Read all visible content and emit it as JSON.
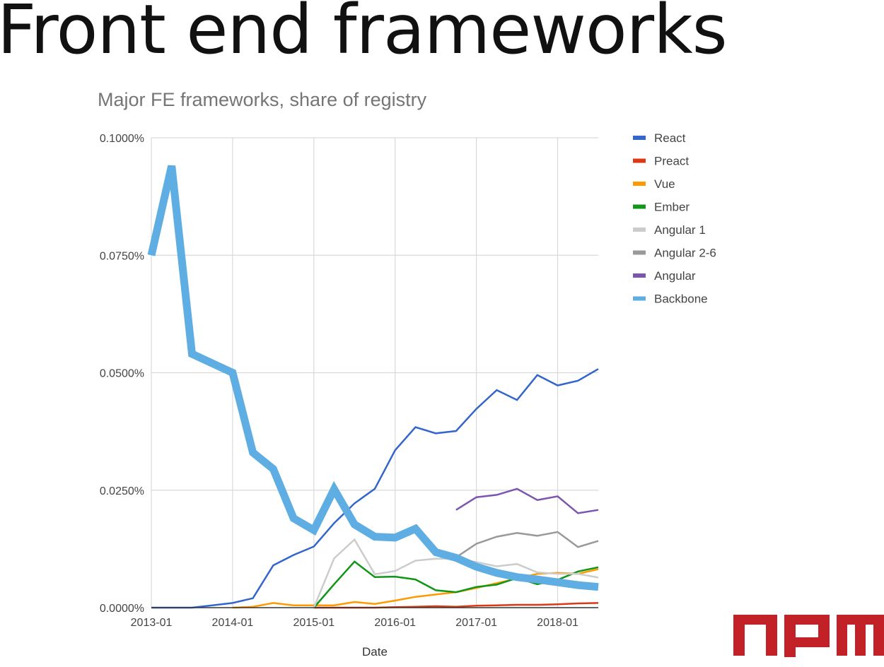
{
  "slide": {
    "title": "Front end frameworks"
  },
  "chart_data": {
    "type": "line",
    "title": "Major FE frameworks, share of registry",
    "xlabel": "Date",
    "ylabel": "",
    "x": [
      "2013-01",
      "2013-04",
      "2013-07",
      "2013-10",
      "2014-01",
      "2014-04",
      "2014-07",
      "2014-10",
      "2015-01",
      "2015-04",
      "2015-07",
      "2015-10",
      "2016-01",
      "2016-04",
      "2016-07",
      "2016-10",
      "2017-01",
      "2017-04",
      "2017-07",
      "2017-10",
      "2018-01",
      "2018-04",
      "2018-07"
    ],
    "x_ticks": [
      "2013-01",
      "2014-01",
      "2015-01",
      "2016-01",
      "2017-01",
      "2018-01"
    ],
    "y_ticks": [
      "0.0000%",
      "0.0250%",
      "0.0500%",
      "0.0750%",
      "0.1000%"
    ],
    "ylim": [
      0,
      0.1
    ],
    "y_unit": "%",
    "grid": true,
    "legend_position": "right",
    "series": [
      {
        "name": "React",
        "color": "#3366cc",
        "width": 2.5,
        "values": [
          0,
          0,
          0,
          0.0005,
          0.001,
          0.002,
          0.009,
          0.0112,
          0.013,
          0.018,
          0.0222,
          0.0253,
          0.0335,
          0.0384,
          0.0371,
          0.0376,
          0.0423,
          0.0463,
          0.0442,
          0.0495,
          0.0473,
          0.0483,
          0.0508
        ]
      },
      {
        "name": "Preact",
        "color": "#dc3912",
        "width": 2.5,
        "values": [
          null,
          null,
          null,
          null,
          null,
          null,
          null,
          null,
          0,
          0,
          0,
          0,
          0.0001,
          0.0002,
          0.0003,
          0.0002,
          0.0004,
          0.0005,
          0.0006,
          0.0006,
          0.0007,
          0.0009,
          0.001
        ]
      },
      {
        "name": "Vue",
        "color": "#ff9900",
        "width": 2.5,
        "values": [
          null,
          null,
          null,
          null,
          0,
          0.0002,
          0.001,
          0.0005,
          0.0005,
          0.0005,
          0.0012,
          0.0008,
          0.0015,
          0.0023,
          0.0028,
          0.0033,
          0.0042,
          0.0052,
          0.0062,
          0.0072,
          0.0074,
          0.0072,
          0.0082
        ]
      },
      {
        "name": "Ember",
        "color": "#109618",
        "width": 2.5,
        "values": [
          null,
          null,
          null,
          null,
          null,
          null,
          null,
          null,
          0,
          0.005,
          0.0098,
          0.0065,
          0.0066,
          0.006,
          0.0037,
          0.0033,
          0.0044,
          0.0049,
          0.0063,
          0.005,
          0.0059,
          0.0077,
          0.0086
        ]
      },
      {
        "name": "Angular 1",
        "color": "#cccccc",
        "width": 2.5,
        "values": [
          null,
          null,
          null,
          null,
          null,
          null,
          null,
          null,
          0,
          0.0105,
          0.0145,
          0.0071,
          0.0078,
          0.01,
          0.0104,
          0.0104,
          0.0097,
          0.0088,
          0.0093,
          0.0075,
          0.0072,
          0.0072,
          0.0064
        ]
      },
      {
        "name": "Angular 2-6",
        "color": "#999999",
        "width": 2.5,
        "values": [
          null,
          null,
          null,
          null,
          null,
          null,
          null,
          null,
          null,
          null,
          null,
          null,
          null,
          null,
          null,
          0.0107,
          0.0136,
          0.0151,
          0.0159,
          0.0153,
          0.0161,
          0.0129,
          0.0142
        ]
      },
      {
        "name": "Angular",
        "color": "#7c55b0",
        "width": 2.5,
        "values": [
          null,
          null,
          null,
          null,
          null,
          null,
          null,
          null,
          null,
          null,
          null,
          null,
          null,
          null,
          null,
          0.0208,
          0.0235,
          0.024,
          0.0253,
          0.0229,
          0.0237,
          0.0201,
          0.0208
        ]
      },
      {
        "name": "Backbone",
        "color": "#5faee3",
        "width": 11,
        "values": [
          0.075,
          0.094,
          0.054,
          0.052,
          0.05,
          0.033,
          0.0295,
          0.019,
          0.0165,
          0.0252,
          0.0177,
          0.0151,
          0.0149,
          0.0168,
          0.0118,
          0.0106,
          0.0087,
          0.0074,
          0.0065,
          0.006,
          0.0054,
          0.0048,
          0.0044
        ]
      }
    ]
  }
}
